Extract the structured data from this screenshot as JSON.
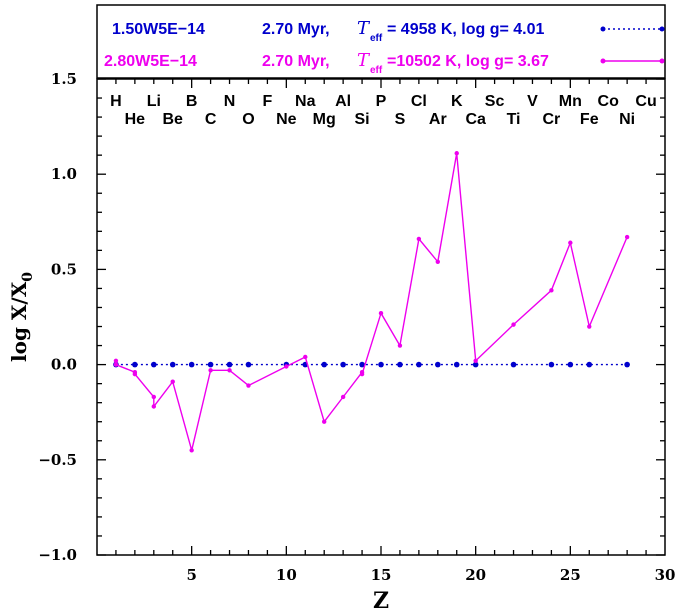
{
  "chart_data": {
    "type": "line",
    "xlabel": "Z",
    "ylabel_main": "log X/X",
    "ylabel_sub": "0",
    "xlim": [
      0,
      30
    ],
    "ylim": [
      -1.0,
      1.5
    ],
    "x_ticks": [
      5,
      10,
      15,
      20,
      25,
      30
    ],
    "y_ticks": [
      -1.0,
      -0.5,
      0.0,
      0.5,
      1.0,
      1.5
    ],
    "x_tick_labels": [
      "5",
      "10",
      "15",
      "20",
      "25",
      "30"
    ],
    "y_tick_labels": [
      "−1.0",
      "−0.5",
      "0.0",
      "0.5",
      "1.0",
      "1.5"
    ],
    "grid": false,
    "legend_position": "top",
    "elements_top": [
      {
        "z": 1,
        "label": "H"
      },
      {
        "z": 3,
        "label": "Li"
      },
      {
        "z": 5,
        "label": "B"
      },
      {
        "z": 7,
        "label": "N"
      },
      {
        "z": 9,
        "label": "F"
      },
      {
        "z": 11,
        "label": "Na"
      },
      {
        "z": 13,
        "label": "Al"
      },
      {
        "z": 15,
        "label": "P"
      },
      {
        "z": 17,
        "label": "Cl"
      },
      {
        "z": 19,
        "label": "K"
      },
      {
        "z": 21,
        "label": "Sc"
      },
      {
        "z": 23,
        "label": "V"
      },
      {
        "z": 25,
        "label": "Mn"
      },
      {
        "z": 27,
        "label": "Co"
      },
      {
        "z": 29,
        "label": "Cu"
      }
    ],
    "elements_bottom": [
      {
        "z": 2,
        "label": "He"
      },
      {
        "z": 4,
        "label": "Be"
      },
      {
        "z": 6,
        "label": "C"
      },
      {
        "z": 8,
        "label": "O"
      },
      {
        "z": 10,
        "label": "Ne"
      },
      {
        "z": 12,
        "label": "Mg"
      },
      {
        "z": 14,
        "label": "Si"
      },
      {
        "z": 16,
        "label": "S"
      },
      {
        "z": 18,
        "label": "Ar"
      },
      {
        "z": 20,
        "label": "Ca"
      },
      {
        "z": 22,
        "label": "Ti"
      },
      {
        "z": 24,
        "label": "Cr"
      },
      {
        "z": 26,
        "label": "Fe"
      },
      {
        "z": 28,
        "label": "Ni"
      }
    ],
    "series": [
      {
        "name": "1.50W5E−14",
        "color": "#0000cc",
        "line_style": "dotted",
        "legend_age": "2.70 Myr,",
        "legend_teff": "= 4958 K, log g= 4.01",
        "x": [
          1,
          2,
          3,
          4,
          5,
          6,
          7,
          8,
          10,
          11,
          12,
          13,
          14,
          15,
          16,
          17,
          18,
          19,
          20,
          22,
          24,
          25,
          26,
          28
        ],
        "y": [
          0,
          0,
          0,
          0,
          0,
          0,
          0,
          0,
          0,
          0,
          0,
          0,
          0,
          0,
          0,
          0,
          0,
          0,
          0,
          0,
          0,
          0,
          0,
          0
        ]
      },
      {
        "name": "2.80W5E−14",
        "color": "#ee00ee",
        "line_style": "solid",
        "legend_age": "2.70 Myr,",
        "legend_teff": "=10502 K, log g= 3.67",
        "x": [
          1,
          1,
          2,
          2,
          3,
          3,
          4,
          5,
          6,
          7,
          8,
          10,
          11,
          12,
          13,
          14,
          14,
          15,
          16,
          17,
          18,
          19,
          20,
          22,
          24,
          25,
          26,
          28
        ],
        "y": [
          0.02,
          0.0,
          -0.04,
          -0.05,
          -0.17,
          -0.22,
          -0.09,
          -0.45,
          -0.03,
          -0.03,
          -0.11,
          -0.01,
          0.04,
          -0.3,
          -0.17,
          -0.04,
          -0.05,
          0.27,
          0.1,
          0.66,
          0.54,
          1.11,
          0.02,
          0.21,
          0.39,
          0.64,
          0.2,
          0.67
        ]
      }
    ]
  },
  "legend": {
    "teff_symbol": "T",
    "teff_subscript": "eff"
  }
}
